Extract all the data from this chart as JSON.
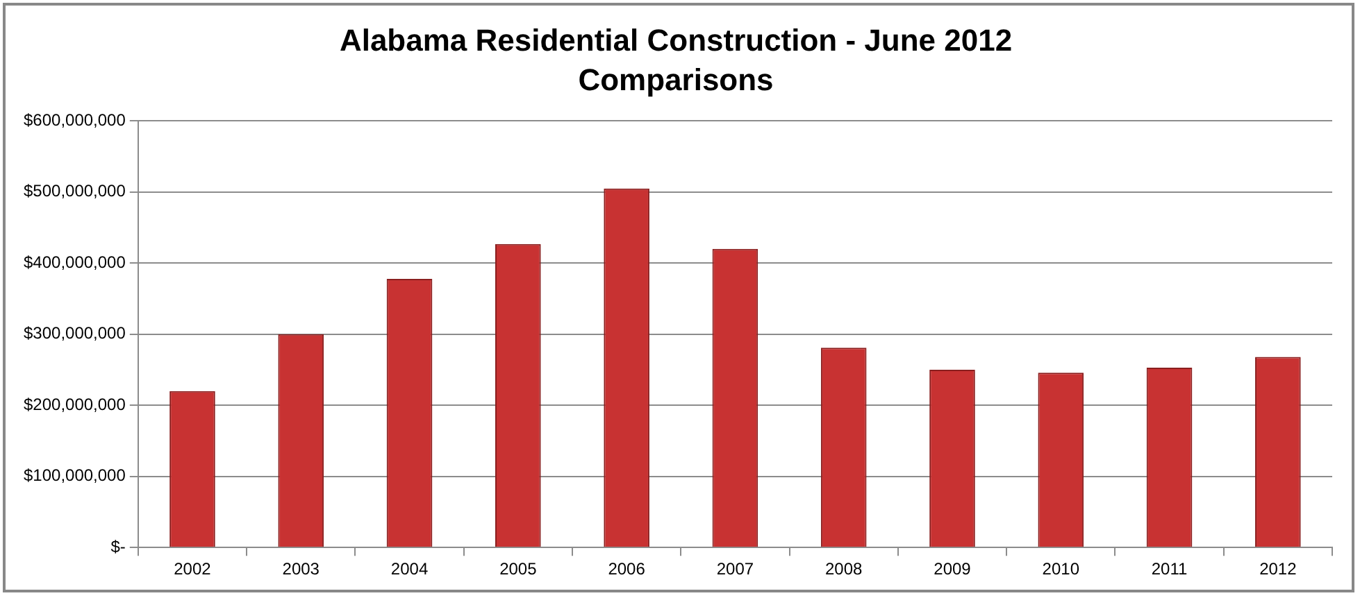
{
  "chart_data": {
    "type": "bar",
    "title": [
      "Alabama Residential Construction - June 2012",
      "Comparisons"
    ],
    "categories": [
      "2002",
      "2003",
      "2004",
      "2005",
      "2006",
      "2007",
      "2008",
      "2009",
      "2010",
      "2011",
      "2012"
    ],
    "values": [
      220000000,
      300000000,
      378000000,
      427000000,
      505000000,
      420000000,
      281000000,
      250000000,
      246000000,
      253000000,
      268000000
    ],
    "color": "#c83232",
    "ylim": [
      0,
      600000000
    ],
    "yticks": [
      {
        "value": 0,
        "label": "$-"
      },
      {
        "value": 100000000,
        "label": "$100,000,000"
      },
      {
        "value": 200000000,
        "label": "$200,000,000"
      },
      {
        "value": 300000000,
        "label": "$300,000,000"
      },
      {
        "value": 400000000,
        "label": "$400,000,000"
      },
      {
        "value": 500000000,
        "label": "$500,000,000"
      },
      {
        "value": 600000000,
        "label": "$600,000,000"
      }
    ],
    "grid": "y",
    "legend": false
  }
}
